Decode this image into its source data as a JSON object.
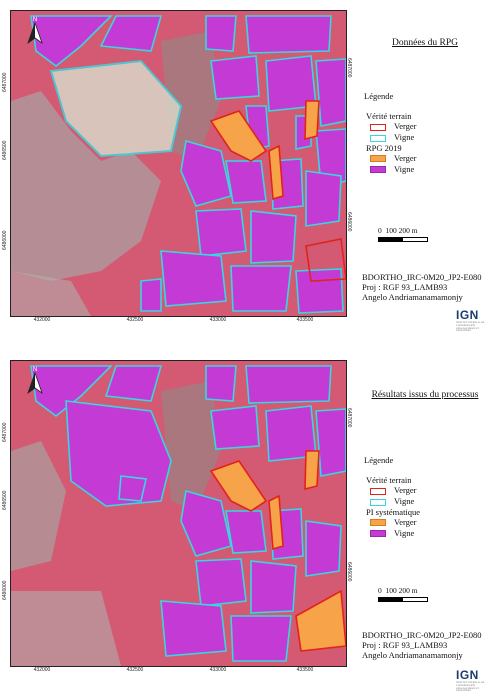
{
  "panels": [
    {
      "title": "Données du RPG",
      "legend_title": "Légende",
      "section_truth": "Vérité terrain",
      "truth_items": [
        "Verger",
        "Vigne"
      ],
      "section_data": "RPG 2019",
      "data_items": [
        "Verger",
        "Vigne"
      ],
      "scale": [
        "0",
        "100 200 m"
      ],
      "credits": [
        "BDORTHO_IRC-0M20_JP2-E080",
        "Proj : RGF 93_LAMB93",
        "Angelo Andriamanamamonjy"
      ]
    },
    {
      "title": "Résultats issus du processus",
      "legend_title": "Légende",
      "section_truth": "Vérité terrain",
      "truth_items": [
        "Verger",
        "Vigne"
      ],
      "section_data": "PI systématique",
      "data_items": [
        "Verger",
        "Vigne"
      ],
      "scale": [
        "0",
        "100 200 m"
      ],
      "credits": [
        "BDORTHO_IRC-0M20_JP2-E080",
        "Proj : RGF 93_LAMB93",
        "Angelo Andriamanamamonjy"
      ]
    }
  ],
  "map": {
    "x_ticks": [
      "432000",
      "432500",
      "433000",
      "433500"
    ],
    "y_ticks": [
      "6487000",
      "6486500",
      "6486000",
      "6485500"
    ],
    "north_label": "N"
  },
  "logo": {
    "word": "IGN",
    "sub": "INSTITUT NATIONAL DE L'INFORMATION GÉOGRAPHIQUE ET FORESTIÈRE"
  },
  "colors": {
    "vigne_fill": "#c33bd4",
    "verger_fill": "#f6a34a",
    "truth_vigne_outline": "#3ad6e0",
    "truth_verger_outline": "#e2231a",
    "background_imagery": "#d35a72"
  }
}
